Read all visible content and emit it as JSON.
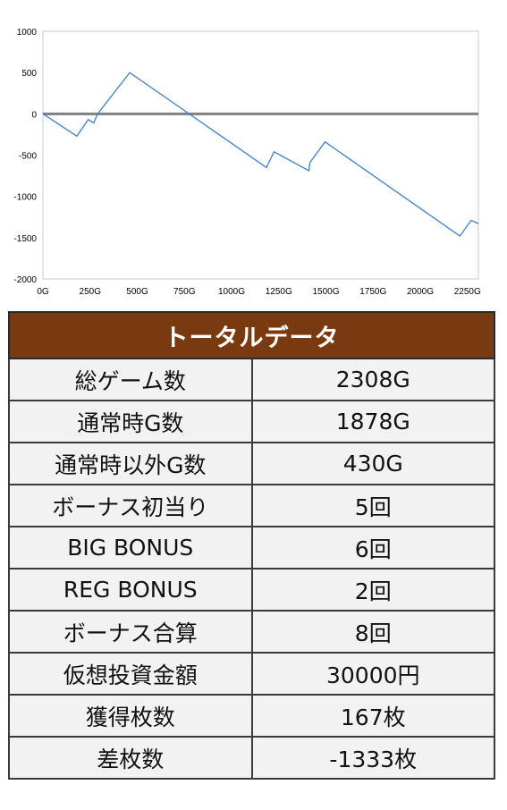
{
  "chart_data": {
    "type": "line",
    "title": "",
    "xlabel": "",
    "ylabel": "",
    "xlim": [
      0,
      2308
    ],
    "ylim": [
      -2000,
      1000
    ],
    "x_ticks": [
      0,
      250,
      500,
      750,
      1000,
      1250,
      1500,
      1750,
      2000,
      2250
    ],
    "x_tick_labels": [
      "0G",
      "250G",
      "500G",
      "750G",
      "1000G",
      "1250G",
      "1500G",
      "1750G",
      "2000G",
      "2250G"
    ],
    "y_ticks": [
      1000,
      500,
      0,
      -500,
      -1000,
      -1500,
      -2000
    ],
    "y_tick_labels": [
      "1000",
      "500",
      "0",
      "-500",
      "-1000",
      "-1500",
      "-2000"
    ],
    "grid": false,
    "line_color": "#3f7fc8",
    "zero_line_color": "#808080",
    "series": [
      {
        "x": [
          0,
          180,
          240,
          270,
          275,
          290,
          460,
          1185,
          1225,
          1410,
          1415,
          1495,
          2210,
          2270,
          2308
        ],
        "y": [
          0,
          -270,
          -70,
          -110,
          -80,
          0,
          500,
          -650,
          -460,
          -690,
          -590,
          -340,
          -1480,
          -1290,
          -1330
        ]
      }
    ]
  },
  "table": {
    "title": "トータルデータ",
    "header_color": "#7a3a10",
    "rows": [
      {
        "label": "総ゲーム数",
        "value": "2308G"
      },
      {
        "label": "通常時G数",
        "value": "1878G"
      },
      {
        "label": "通常時以外G数",
        "value": "430G"
      },
      {
        "label": "ボーナス初当り",
        "value": "5回"
      },
      {
        "label": "BIG BONUS",
        "value": "6回"
      },
      {
        "label": "REG BONUS",
        "value": "2回"
      },
      {
        "label": "ボーナス合算",
        "value": "8回"
      },
      {
        "label": "仮想投資金額",
        "value": "30000円"
      },
      {
        "label": "獲得枚数",
        "value": "167枚"
      },
      {
        "label": "差枚数",
        "value": "-1333枚"
      }
    ]
  }
}
